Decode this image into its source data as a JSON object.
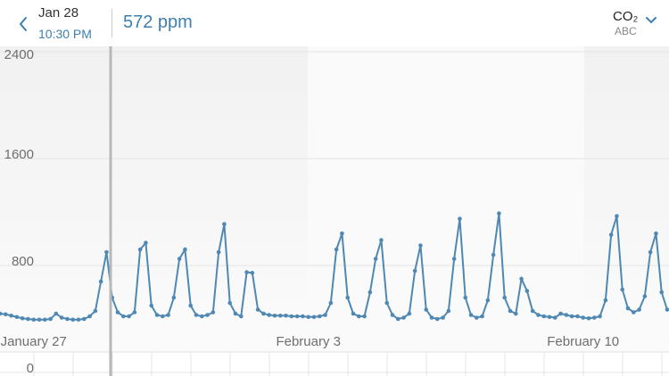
{
  "header": {
    "date": "Jan 28",
    "time": "10:30 PM",
    "reading": "572 ppm",
    "metric": "CO₂",
    "metric_sub": "ABC"
  },
  "chart_data": {
    "type": "line",
    "categories": [
      null,
      null,
      null,
      null,
      null,
      null,
      "January 27",
      null,
      null,
      null,
      null,
      null,
      null,
      null,
      null,
      null,
      null,
      null,
      null,
      null,
      null,
      null,
      null,
      null,
      null,
      null,
      null,
      null,
      null,
      null,
      null,
      null,
      null,
      null,
      null,
      null,
      null,
      null,
      null,
      null,
      null,
      null,
      null,
      null,
      null,
      null,
      null,
      null,
      null,
      null,
      null,
      null,
      null,
      null,
      null,
      "February 3",
      null,
      null,
      null,
      null,
      null,
      null,
      null,
      null,
      null,
      null,
      null,
      null,
      null,
      null,
      null,
      null,
      null,
      null,
      null,
      null,
      null,
      null,
      null,
      null,
      null,
      null,
      null,
      null,
      null,
      null,
      null,
      null,
      null,
      null,
      null,
      null,
      null,
      null,
      null,
      null,
      null,
      null,
      null,
      null,
      null,
      null,
      null,
      null,
      "February 10",
      null,
      null,
      null,
      null,
      null,
      null,
      null,
      null,
      null,
      null,
      null,
      null,
      null,
      null,
      null
    ],
    "series": [
      {
        "color": "#4f88b3",
        "values": [
          440,
          435,
          425,
          415,
          405,
          400,
          395,
          395,
          395,
          400,
          440,
          410,
          400,
          395,
          395,
          400,
          420,
          460,
          680,
          900,
          560,
          450,
          420,
          420,
          450,
          920,
          970,
          500,
          430,
          420,
          430,
          560,
          850,
          920,
          500,
          430,
          420,
          430,
          450,
          900,
          1110,
          520,
          440,
          420,
          750,
          745,
          470,
          440,
          430,
          425,
          425,
          425,
          420,
          420,
          420,
          415,
          415,
          420,
          430,
          520,
          920,
          1040,
          560,
          440,
          420,
          420,
          600,
          850,
          990,
          520,
          430,
          400,
          410,
          440,
          760,
          950,
          470,
          410,
          400,
          410,
          460,
          850,
          1150,
          560,
          430,
          410,
          420,
          540,
          880,
          1190,
          560,
          460,
          440,
          700,
          610,
          460,
          430,
          420,
          415,
          410,
          440,
          430,
          420,
          420,
          410,
          405,
          410,
          420,
          540,
          1030,
          1170,
          620,
          480,
          450,
          470,
          570,
          900,
          1040,
          600,
          470
        ]
      }
    ],
    "ylim": [
      0,
      2400
    ],
    "yticks": [
      0,
      800,
      1600,
      2400
    ],
    "grid": true
  }
}
